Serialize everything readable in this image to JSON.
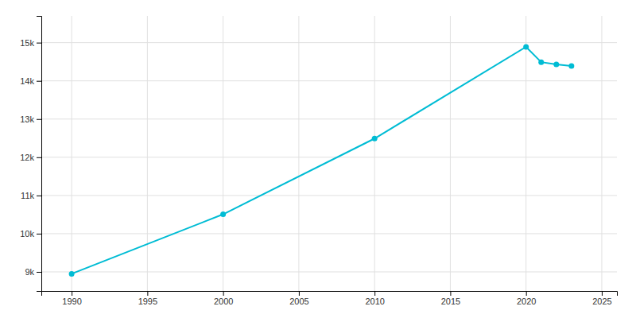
{
  "chart_data": {
    "type": "line",
    "x": [
      1990,
      2000,
      2010,
      2020,
      2021,
      2022,
      2023
    ],
    "values": [
      8950,
      10507,
      12490,
      14890,
      14490,
      14430,
      14390
    ],
    "color": "#00BCD4",
    "marker": "circle",
    "xlim": [
      1988,
      2026
    ],
    "ylim": [
      8500,
      15700
    ],
    "xticks": [
      1990,
      1995,
      2000,
      2005,
      2010,
      2015,
      2020,
      2025
    ],
    "yticks": [
      {
        "value": 9000,
        "label": "9k"
      },
      {
        "value": 10000,
        "label": "10k"
      },
      {
        "value": 11000,
        "label": "11k"
      },
      {
        "value": 12000,
        "label": "12k"
      },
      {
        "value": 13000,
        "label": "13k"
      },
      {
        "value": 14000,
        "label": "14k"
      },
      {
        "value": 15000,
        "label": "15k"
      }
    ],
    "grid": true
  }
}
